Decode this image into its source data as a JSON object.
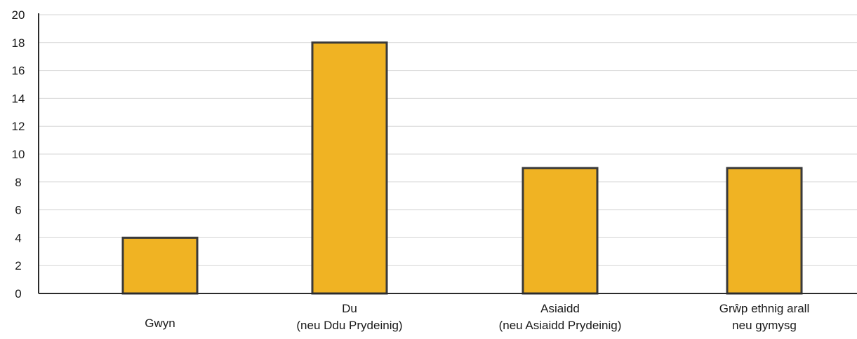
{
  "chart_data": {
    "type": "bar",
    "title": "",
    "xlabel": "",
    "ylabel": "",
    "categories": [
      [
        "Gwyn"
      ],
      [
        "Du",
        "(neu Ddu Prydeinig)"
      ],
      [
        "Asiaidd",
        "(neu Asiaidd Prydeinig)"
      ],
      [
        "Grŵp ethnig arall",
        "neu gymysg"
      ]
    ],
    "values": [
      4,
      18,
      9,
      9
    ],
    "ylim": [
      0,
      20
    ],
    "yticks": [
      0,
      2,
      4,
      6,
      8,
      10,
      12,
      14,
      16,
      18,
      20
    ],
    "grid": true,
    "bar_color": "#F0B323",
    "bar_edge_color": "#3a3a3a"
  }
}
